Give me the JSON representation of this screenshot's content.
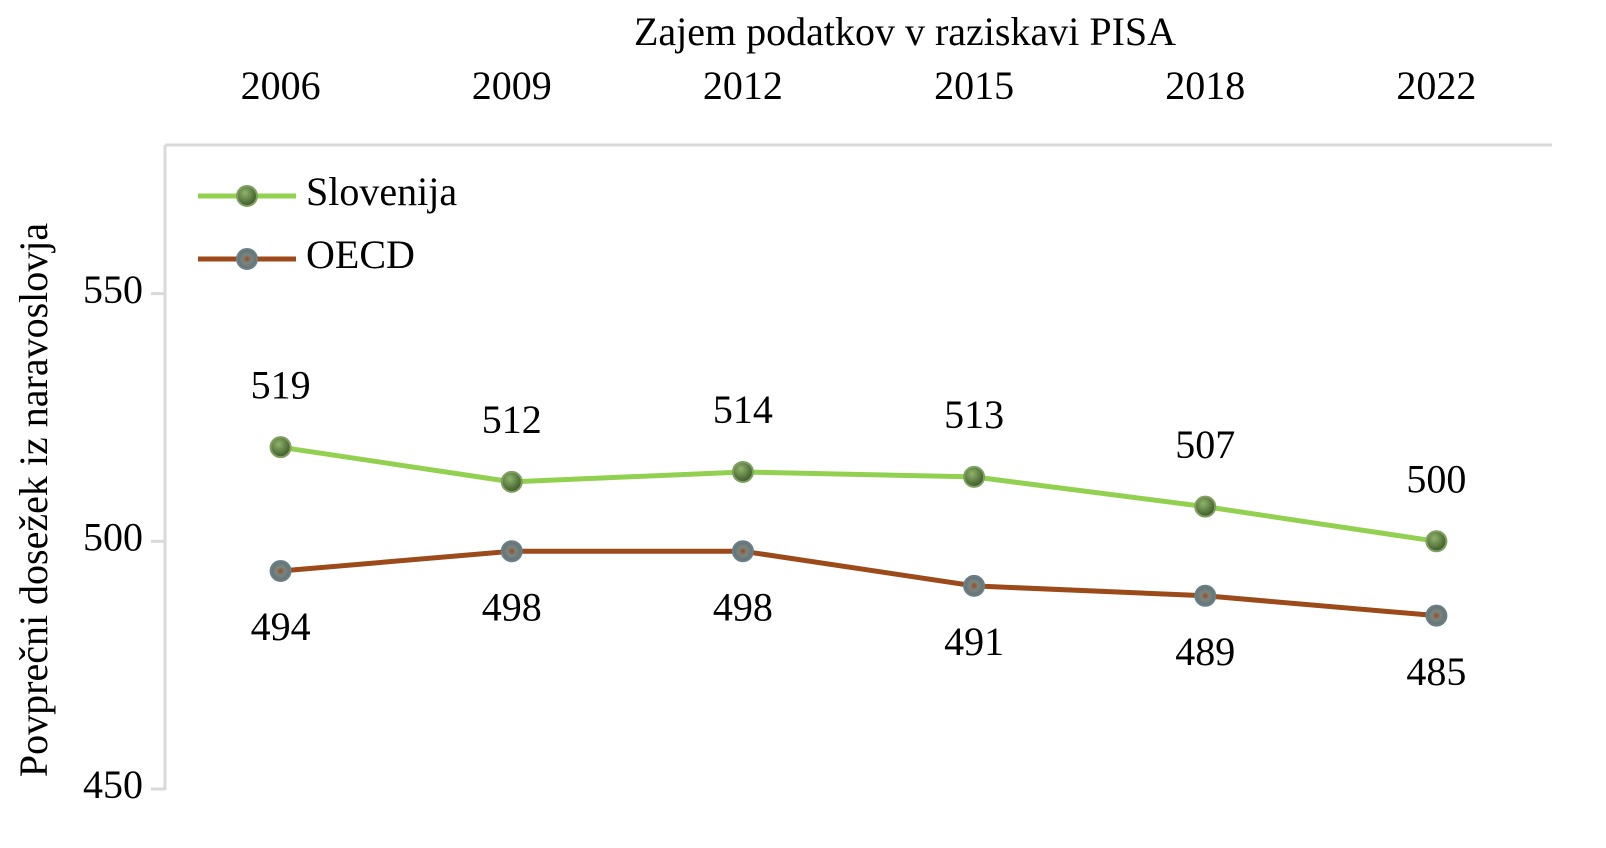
{
  "chart_data": {
    "type": "line",
    "x_label": "Zajem podatkov v raziskavi PISA",
    "y_label": "Povprečni dosežek iz naravoslovja",
    "categories": [
      "2006",
      "2009",
      "2012",
      "2015",
      "2018",
      "2022"
    ],
    "series": [
      {
        "name": "Slovenija",
        "color": "#92d050",
        "values": [
          519,
          512,
          514,
          513,
          507,
          500
        ]
      },
      {
        "name": "OECD",
        "color": "#9c4a1a",
        "values": [
          494,
          498,
          498,
          491,
          489,
          485
        ]
      }
    ],
    "ylim": [
      450,
      580
    ],
    "yticks": [
      450,
      500,
      550
    ],
    "grid": false,
    "legend": "upper left"
  }
}
